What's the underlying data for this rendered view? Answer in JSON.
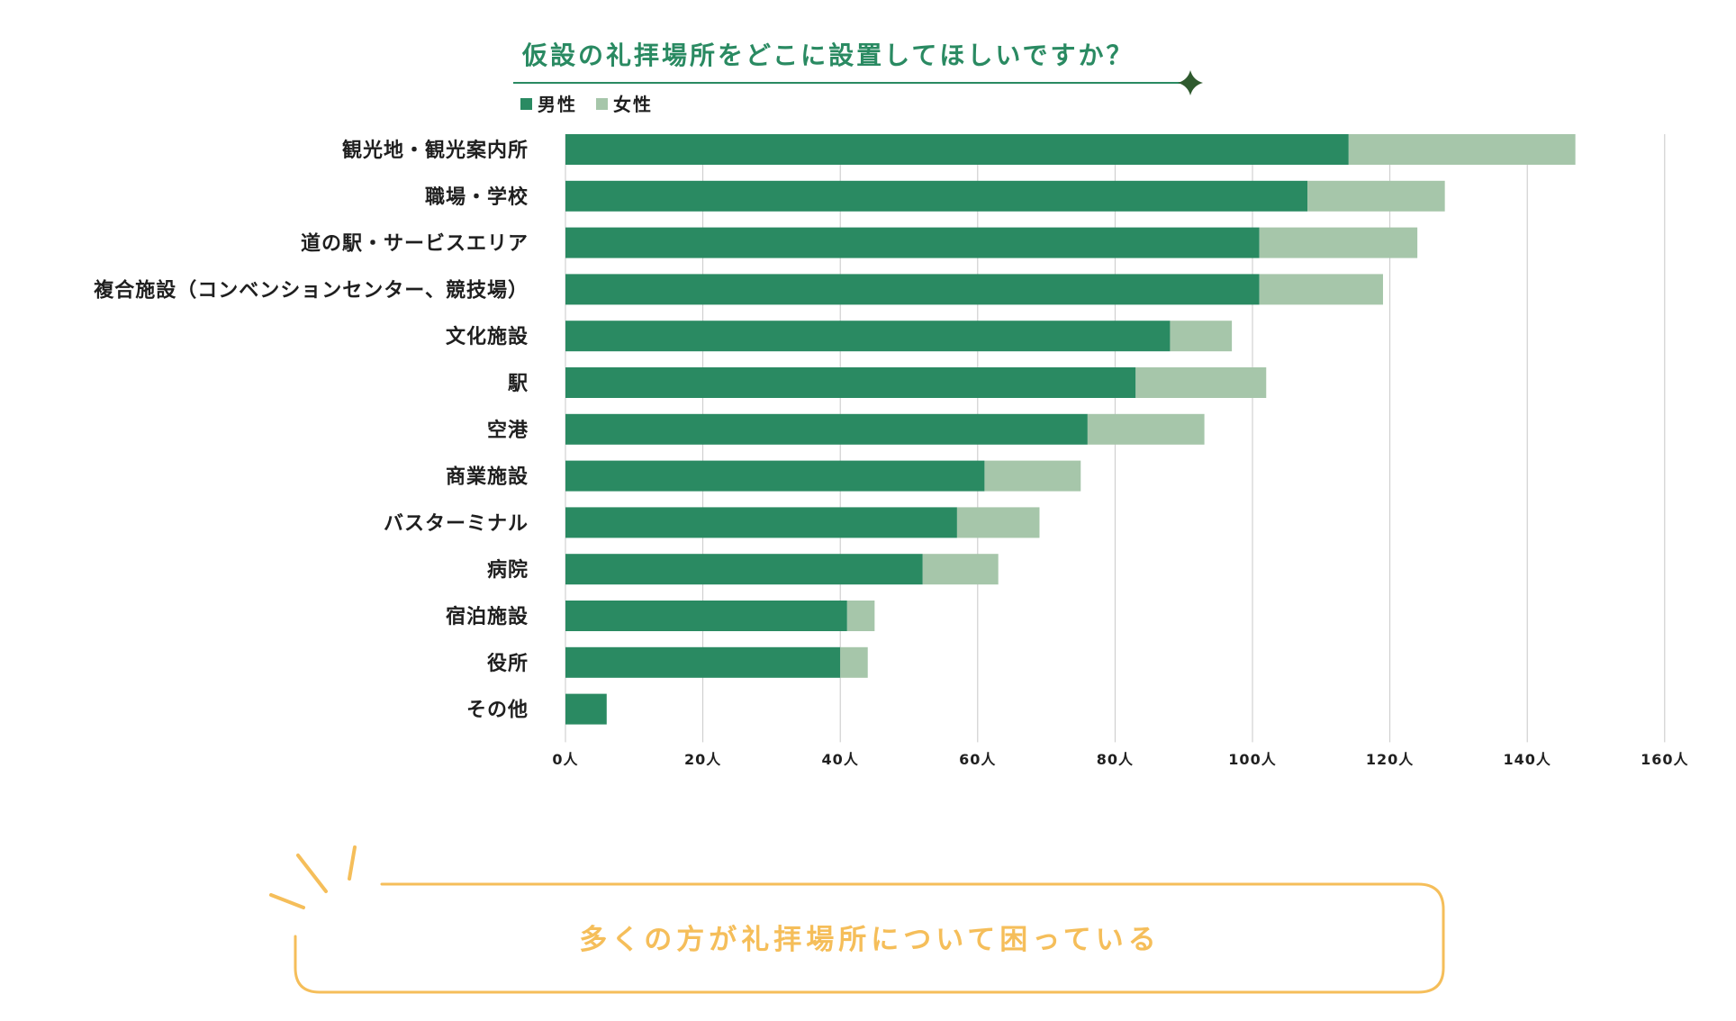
{
  "chart_data": {
    "type": "bar",
    "orientation": "horizontal",
    "stacked": true,
    "title": "仮設の礼拝場所をどこに設置してほしいですか？",
    "categories": [
      "観光地・観光案内所",
      "職場・学校",
      "道の駅・サービスエリア",
      "複合施設（コンベンションセンター、競技場）",
      "文化施設",
      "駅",
      "空港",
      "商業施設",
      "バスターミナル",
      "病院",
      "宿泊施設",
      "役所",
      "その他"
    ],
    "series": [
      {
        "name": "男性",
        "color": "#2a8a62",
        "values": [
          114,
          108,
          101,
          101,
          88,
          83,
          76,
          61,
          57,
          52,
          41,
          40,
          6
        ]
      },
      {
        "name": "女性",
        "color": "#a6c6aa",
        "values": [
          33,
          20,
          23,
          18,
          9,
          19,
          17,
          14,
          12,
          11,
          4,
          4,
          0
        ]
      }
    ],
    "xlim": [
      0,
      160
    ],
    "xticks": [
      0,
      20,
      40,
      60,
      80,
      100,
      120,
      140,
      160
    ],
    "tick_suffix": "人",
    "grid": true,
    "legend": "top-left"
  },
  "callout": {
    "text": "多くの方が礼拝場所について困っている",
    "color": "#f5be5a"
  },
  "decor": {
    "title_rule_color": "#2a8a62",
    "sparkle_color": "#2f5a2e",
    "grid_color": "#c8c8c8"
  }
}
